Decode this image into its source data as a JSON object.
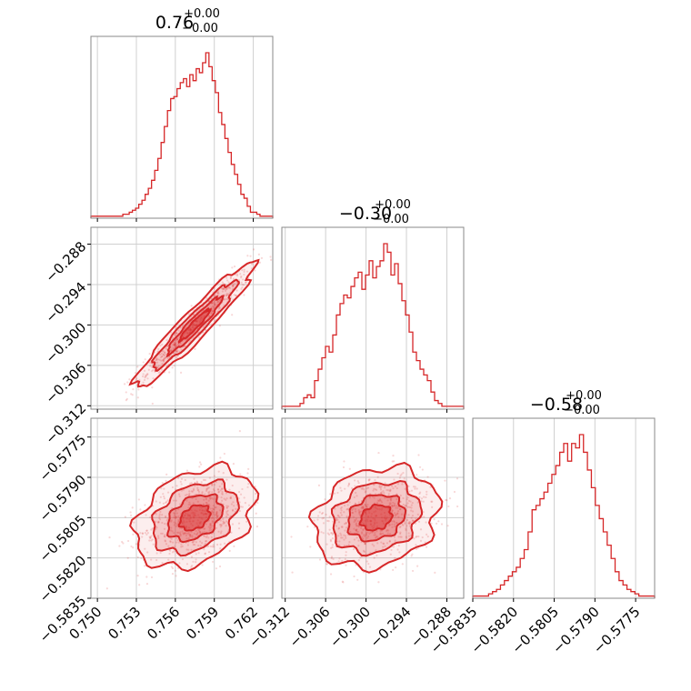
{
  "chart_data": {
    "type": "corner",
    "color": "#d62728",
    "grid": true,
    "parameters": [
      {
        "title_value": "0.76",
        "title_plus": "+0.00",
        "title_minus": "−0.00",
        "range": [
          0.7495,
          0.7635
        ],
        "ticks": [
          0.75,
          0.753,
          0.756,
          0.759,
          0.762
        ],
        "tick_labels": [
          "0.750",
          "0.753",
          "0.756",
          "0.759",
          "0.762"
        ]
      },
      {
        "title_value": "−0.30",
        "title_plus": "+0.00",
        "title_minus": "−0.00",
        "range": [
          -0.3125,
          -0.2855
        ],
        "ticks": [
          -0.312,
          -0.306,
          -0.3,
          -0.294,
          -0.288
        ],
        "tick_labels": [
          "−0.312",
          "−0.306",
          "−0.300",
          "−0.294",
          "−0.288"
        ]
      },
      {
        "title_value": "−0.58",
        "title_plus": "+0.00",
        "title_minus": "−0.00",
        "range": [
          -0.5835,
          -0.5768
        ],
        "ticks": [
          -0.5835,
          -0.582,
          -0.5805,
          -0.579,
          -0.5775
        ],
        "tick_labels": [
          "−0.5835",
          "−0.5820",
          "−0.5805",
          "−0.5790",
          "−0.5775"
        ]
      }
    ],
    "histograms": [
      {
        "bin_edges_range": [
          0.7495,
          0.7635
        ],
        "counts": [
          1,
          1,
          1,
          1,
          1,
          1,
          1,
          1,
          1,
          1,
          2,
          2,
          3,
          4,
          5,
          7,
          9,
          12,
          15,
          19,
          24,
          30,
          38,
          46,
          54,
          60,
          61,
          65,
          68,
          70,
          66,
          72,
          69,
          75,
          73,
          78,
          83,
          76,
          69,
          63,
          53,
          47,
          40,
          33,
          27,
          22,
          17,
          12,
          10,
          6,
          3,
          3,
          2,
          1,
          1,
          1,
          1
        ]
      },
      {
        "bin_edges_range": [
          -0.3125,
          -0.2855
        ],
        "counts": [
          1,
          1,
          1,
          1,
          1,
          2,
          4,
          5,
          4,
          10,
          14,
          18,
          22,
          20,
          26,
          33,
          37,
          40,
          39,
          43,
          46,
          48,
          42,
          47,
          52,
          46,
          50,
          52,
          58,
          55,
          47,
          51,
          44,
          38,
          33,
          27,
          20,
          17,
          14,
          12,
          10,
          6,
          3,
          2,
          1,
          1,
          1,
          1,
          1,
          1
        ]
      },
      {
        "bin_edges_range": [
          -0.5835,
          -0.5768
        ],
        "counts": [
          1,
          1,
          1,
          1,
          2,
          3,
          4,
          6,
          8,
          10,
          12,
          14,
          18,
          22,
          30,
          40,
          42,
          45,
          48,
          52,
          56,
          60,
          66,
          70,
          62,
          70,
          68,
          74,
          66,
          58,
          50,
          42,
          36,
          30,
          24,
          18,
          12,
          8,
          6,
          4,
          3,
          2,
          1,
          1,
          1,
          1
        ]
      }
    ],
    "pairs": [
      {
        "x_param": 0,
        "y_param": 1,
        "correlation": 0.95,
        "mean": [
          0.7575,
          -0.3
        ],
        "sd": [
          0.0021,
          0.0042
        ]
      },
      {
        "x_param": 0,
        "y_param": 2,
        "correlation": 0.35,
        "mean": [
          0.7575,
          -0.5805
        ],
        "sd": [
          0.0021,
          0.00085
        ]
      },
      {
        "x_param": 1,
        "y_param": 2,
        "correlation": 0.2,
        "mean": [
          -0.2985,
          -0.5805
        ],
        "sd": [
          0.0042,
          0.00085
        ]
      }
    ]
  }
}
